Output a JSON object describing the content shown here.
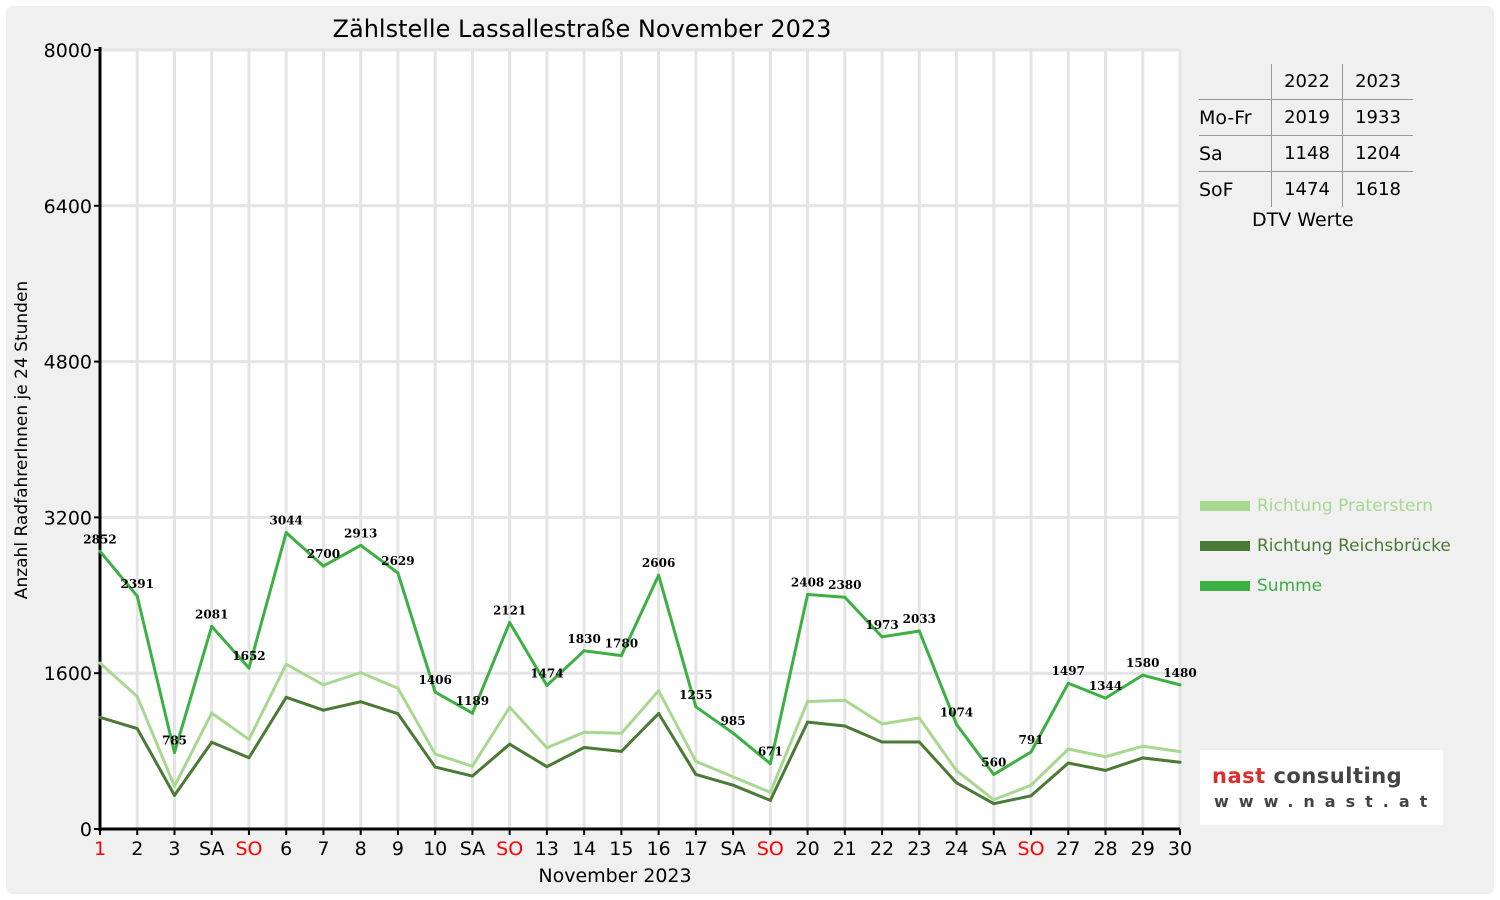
{
  "chart_data": {
    "type": "line",
    "title": "Zählstelle Lassallestraße November 2023",
    "xlabel": "November 2023",
    "ylabel": "Anzahl RadfahrerInnen je 24 Stunden",
    "ylim": [
      0,
      8000
    ],
    "yticks": [
      "0",
      "1600",
      "3200",
      "4800",
      "6400",
      "8000"
    ],
    "ytick_values": [
      0,
      1600,
      3200,
      4800,
      6400,
      8000
    ],
    "grid": true,
    "legend_position": "right",
    "categories": [
      "1",
      "2",
      "3",
      "SA",
      "SO",
      "6",
      "7",
      "8",
      "9",
      "10",
      "SA",
      "SO",
      "13",
      "14",
      "15",
      "16",
      "17",
      "SA",
      "SO",
      "20",
      "21",
      "22",
      "23",
      "24",
      "SA",
      "SO",
      "27",
      "28",
      "29",
      "30"
    ],
    "category_colors": [
      "#ff0000",
      "#000",
      "#000",
      "#000",
      "#ff0000",
      "#000",
      "#000",
      "#000",
      "#000",
      "#000",
      "#000",
      "#ff0000",
      "#000",
      "#000",
      "#000",
      "#000",
      "#000",
      "#000",
      "#ff0000",
      "#000",
      "#000",
      "#000",
      "#000",
      "#000",
      "#000",
      "#ff0000",
      "#000",
      "#000",
      "#000",
      "#000"
    ],
    "series": [
      {
        "name": "Richtung Praterstern",
        "color": "#a8d890",
        "values": [
          1705,
          1360,
          440,
          1190,
          920,
          1692,
          1480,
          1606,
          1445,
          770,
          645,
          1250,
          834,
          993,
          983,
          1420,
          695,
          535,
          377,
          1310,
          1322,
          1080,
          1140,
          600,
          300,
          450,
          820,
          742,
          850,
          795
        ]
      },
      {
        "name": "Richtung Reichsbrücke",
        "color": "#4a7a35",
        "values": [
          1147,
          1031,
          345,
          891,
          732,
          1352,
          1220,
          1307,
          1184,
          636,
          544,
          871,
          640,
          837,
          797,
          1186,
          560,
          450,
          294,
          1098,
          1058,
          893,
          893,
          474,
          260,
          341,
          677,
          602,
          730,
          685
        ]
      },
      {
        "name": "Summe",
        "color": "#3cb043",
        "values": [
          2852,
          2391,
          785,
          2081,
          1652,
          3044,
          2700,
          2913,
          2629,
          1406,
          1189,
          2121,
          1474,
          1830,
          1780,
          2606,
          1255,
          985,
          671,
          2408,
          2380,
          1973,
          2033,
          1074,
          560,
          791,
          1497,
          1344,
          1580,
          1480
        ],
        "data_labels": true
      }
    ]
  },
  "dtv_table": {
    "headers": [
      "2022",
      "2023"
    ],
    "rows": [
      {
        "label": "Mo-Fr",
        "v2022": "2019",
        "v2023": "1933"
      },
      {
        "label": "Sa",
        "v2022": "1148",
        "v2023": "1204"
      },
      {
        "label": "SoF",
        "v2022": "1474",
        "v2023": "1618"
      }
    ],
    "caption": "DTV Werte"
  },
  "logo": {
    "brand_a": "nast",
    "brand_b": "consulting",
    "url": "www.nast.at"
  }
}
